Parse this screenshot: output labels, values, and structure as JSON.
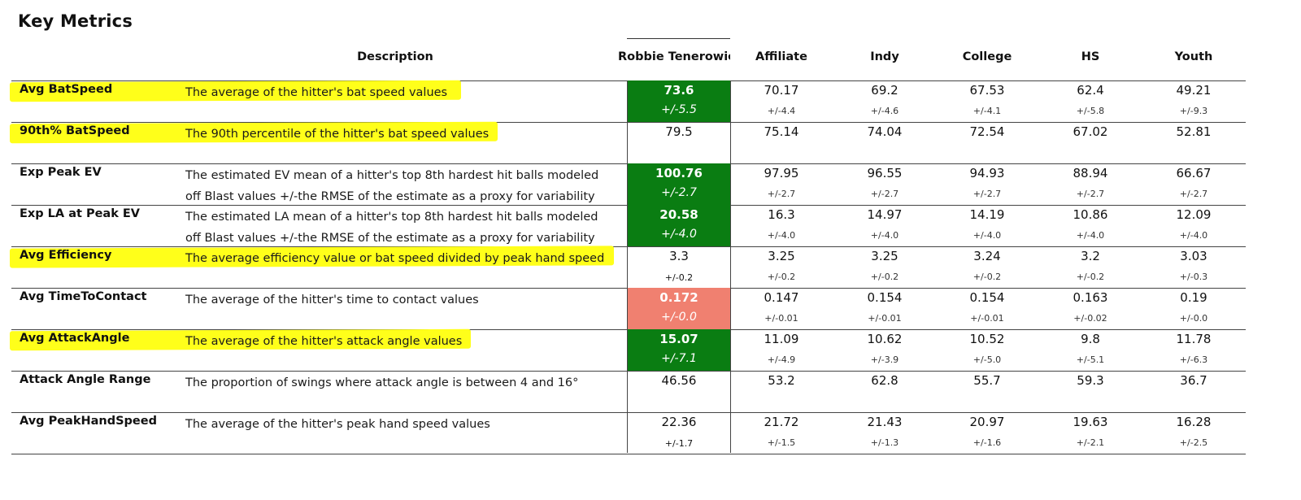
{
  "title": "Key Metrics",
  "colors": {
    "green": "#0a7d12",
    "red": "#f08070",
    "highlight": "#ffff1a"
  },
  "headers": {
    "description": "Description",
    "player": "Robbie Tenerowicz",
    "groups": [
      "Affiliate",
      "Indy",
      "College",
      "HS",
      "Youth"
    ]
  },
  "rows": [
    {
      "metric": "Avg BatSpeed",
      "description": [
        "The average of the hitter's bat speed values",
        ""
      ],
      "highlighted": true,
      "player": {
        "value": "73.6",
        "range": "+/-5.5",
        "status": "green"
      },
      "groups": [
        {
          "value": "70.17",
          "range": "+/-4.4"
        },
        {
          "value": "69.2",
          "range": "+/-4.6"
        },
        {
          "value": "67.53",
          "range": "+/-4.1"
        },
        {
          "value": "62.4",
          "range": "+/-5.8"
        },
        {
          "value": "49.21",
          "range": "+/-9.3"
        }
      ]
    },
    {
      "metric": "90th% BatSpeed",
      "description": [
        "The 90th percentile of the hitter's bat speed values",
        ""
      ],
      "highlighted": true,
      "player": {
        "value": "79.5",
        "range": "",
        "status": "plain"
      },
      "groups": [
        {
          "value": "75.14",
          "range": ""
        },
        {
          "value": "74.04",
          "range": ""
        },
        {
          "value": "72.54",
          "range": ""
        },
        {
          "value": "67.02",
          "range": ""
        },
        {
          "value": "52.81",
          "range": ""
        }
      ]
    },
    {
      "metric": "Exp Peak EV",
      "description": [
        "The estimated EV mean of a hitter's top 8th hardest hit balls modeled",
        "off Blast values +/-the RMSE of the estimate as a proxy for variability"
      ],
      "highlighted": false,
      "player": {
        "value": "100.76",
        "range": "+/-2.7",
        "status": "green"
      },
      "groups": [
        {
          "value": "97.95",
          "range": "+/-2.7"
        },
        {
          "value": "96.55",
          "range": "+/-2.7"
        },
        {
          "value": "94.93",
          "range": "+/-2.7"
        },
        {
          "value": "88.94",
          "range": "+/-2.7"
        },
        {
          "value": "66.67",
          "range": "+/-2.7"
        }
      ]
    },
    {
      "metric": "Exp LA at Peak EV",
      "description": [
        "The estimated LA mean of a hitter's top 8th hardest hit balls modeled",
        "off Blast values +/-the RMSE of the estimate as a proxy for variability"
      ],
      "highlighted": false,
      "player": {
        "value": "20.58",
        "range": "+/-4.0",
        "status": "green"
      },
      "groups": [
        {
          "value": "16.3",
          "range": "+/-4.0"
        },
        {
          "value": "14.97",
          "range": "+/-4.0"
        },
        {
          "value": "14.19",
          "range": "+/-4.0"
        },
        {
          "value": "10.86",
          "range": "+/-4.0"
        },
        {
          "value": "12.09",
          "range": "+/-4.0"
        }
      ]
    },
    {
      "metric": "Avg Efficiency",
      "description": [
        "The average efficiency value or bat speed divided by peak hand speed",
        ""
      ],
      "highlighted": true,
      "player": {
        "value": "3.3",
        "range": "+/-0.2",
        "status": "plain"
      },
      "groups": [
        {
          "value": "3.25",
          "range": "+/-0.2"
        },
        {
          "value": "3.25",
          "range": "+/-0.2"
        },
        {
          "value": "3.24",
          "range": "+/-0.2"
        },
        {
          "value": "3.2",
          "range": "+/-0.2"
        },
        {
          "value": "3.03",
          "range": "+/-0.3"
        }
      ]
    },
    {
      "metric": "Avg TimeToContact",
      "description": [
        "The average of the hitter's time to contact values",
        ""
      ],
      "highlighted": false,
      "player": {
        "value": "0.172",
        "range": "+/-0.0",
        "status": "red"
      },
      "groups": [
        {
          "value": "0.147",
          "range": "+/-0.01"
        },
        {
          "value": "0.154",
          "range": "+/-0.01"
        },
        {
          "value": "0.154",
          "range": "+/-0.01"
        },
        {
          "value": "0.163",
          "range": "+/-0.02"
        },
        {
          "value": "0.19",
          "range": "+/-0.0"
        }
      ]
    },
    {
      "metric": "Avg AttackAngle",
      "description": [
        "The average of the hitter's attack angle values",
        ""
      ],
      "highlighted": true,
      "player": {
        "value": "15.07",
        "range": "+/-7.1",
        "status": "green"
      },
      "groups": [
        {
          "value": "11.09",
          "range": "+/-4.9"
        },
        {
          "value": "10.62",
          "range": "+/-3.9"
        },
        {
          "value": "10.52",
          "range": "+/-5.0"
        },
        {
          "value": "9.8",
          "range": "+/-5.1"
        },
        {
          "value": "11.78",
          "range": "+/-6.3"
        }
      ]
    },
    {
      "metric": "Attack Angle Range",
      "description": [
        "The proportion of swings where attack angle is between 4 and 16°",
        ""
      ],
      "highlighted": false,
      "player": {
        "value": "46.56",
        "range": "",
        "status": "plain"
      },
      "groups": [
        {
          "value": "53.2",
          "range": ""
        },
        {
          "value": "62.8",
          "range": ""
        },
        {
          "value": "55.7",
          "range": ""
        },
        {
          "value": "59.3",
          "range": ""
        },
        {
          "value": "36.7",
          "range": ""
        }
      ]
    },
    {
      "metric": "Avg PeakHandSpeed",
      "description": [
        "The average of the hitter's peak hand speed values",
        ""
      ],
      "highlighted": false,
      "player": {
        "value": "22.36",
        "range": "+/-1.7",
        "status": "plain"
      },
      "groups": [
        {
          "value": "21.72",
          "range": "+/-1.5"
        },
        {
          "value": "21.43",
          "range": "+/-1.3"
        },
        {
          "value": "20.97",
          "range": "+/-1.6"
        },
        {
          "value": "19.63",
          "range": "+/-2.1"
        },
        {
          "value": "16.28",
          "range": "+/-2.5"
        }
      ]
    }
  ]
}
